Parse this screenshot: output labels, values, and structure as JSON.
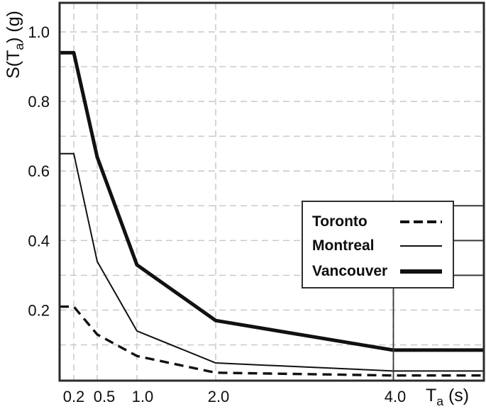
{
  "chart_data": {
    "type": "line",
    "title": "",
    "xlabel": {
      "pre": "T",
      "sub": "a",
      "post": " (s)"
    },
    "ylabel": {
      "pre": "S(T",
      "sub": "a",
      "post": ") (g)"
    },
    "x_ticks": [
      {
        "value": 0.2,
        "label": "0.2"
      },
      {
        "value": 0.5,
        "label": "0.5"
      },
      {
        "value": 1.0,
        "label": "1.0"
      },
      {
        "value": 2.0,
        "label": "2.0"
      },
      {
        "value": 4.0,
        "label": "4.0"
      }
    ],
    "y_ticks": [
      {
        "value": 0.2,
        "label": "0.2"
      },
      {
        "value": 0.4,
        "label": "0.4"
      },
      {
        "value": 0.6,
        "label": "0.6"
      },
      {
        "value": 0.8,
        "label": "0.8"
      },
      {
        "value": 1.0,
        "label": "1.0"
      }
    ],
    "y_gridline_step": 0.1,
    "ylim": [
      0,
      1.08
    ],
    "grid": "dashed light gray",
    "legend_position": "middle-right",
    "series": [
      {
        "name": "Toronto",
        "style": "dashed",
        "points": [
          [
            0.2,
            0.21
          ],
          [
            0.5,
            0.13
          ],
          [
            1.0,
            0.068
          ],
          [
            2.0,
            0.02
          ],
          [
            4.0,
            0.012
          ]
        ]
      },
      {
        "name": "Montreal",
        "style": "solid-thin",
        "points": [
          [
            0.2,
            0.65
          ],
          [
            0.5,
            0.34
          ],
          [
            1.0,
            0.14
          ],
          [
            2.0,
            0.048
          ],
          [
            4.0,
            0.025
          ]
        ]
      },
      {
        "name": "Vancouver",
        "style": "solid-thick",
        "points": [
          [
            0.2,
            0.94
          ],
          [
            0.5,
            0.64
          ],
          [
            1.0,
            0.33
          ],
          [
            2.0,
            0.17
          ],
          [
            4.0,
            0.085
          ]
        ]
      }
    ],
    "notes": "Curves extend horizontally (flat) from T=0.2 to the left plot border and from T=4.0 to the right plot border."
  }
}
